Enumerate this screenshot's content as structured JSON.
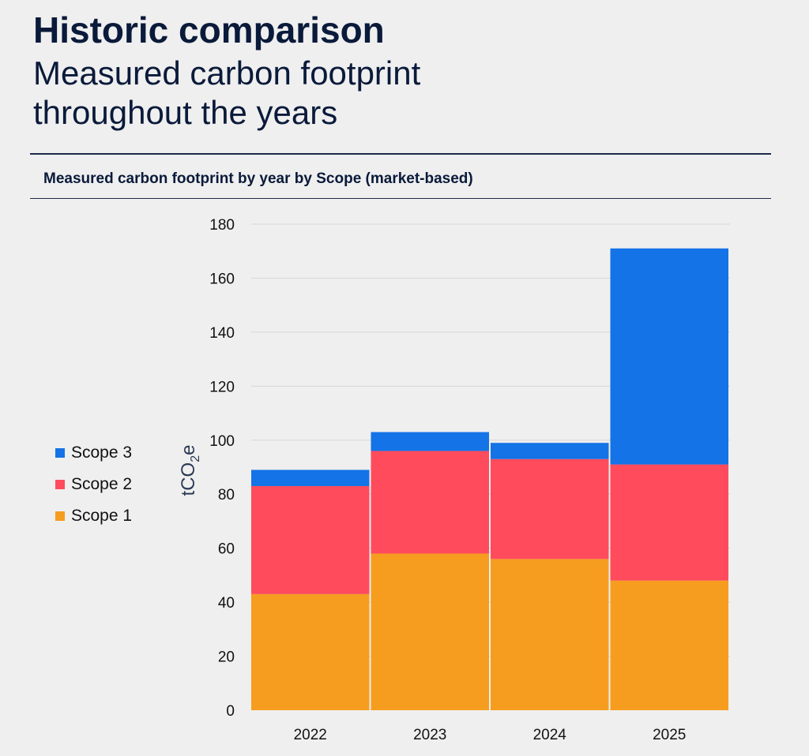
{
  "header": {
    "title": "Historic comparison",
    "subtitle": "Measured carbon footprint throughout the years"
  },
  "chart_heading": "Measured carbon footprint by year by Scope (market-based)",
  "chart_data": {
    "type": "bar",
    "stacked": true,
    "categories": [
      "2022",
      "2023",
      "2024",
      "2025"
    ],
    "series": [
      {
        "name": "Scope 1",
        "color": "#f69d1f",
        "values": [
          43,
          58,
          56,
          48
        ]
      },
      {
        "name": "Scope 2",
        "color": "#ff4b5c",
        "values": [
          40,
          38,
          37,
          43
        ]
      },
      {
        "name": "Scope 3",
        "color": "#1473e6",
        "values": [
          6,
          7,
          6,
          80
        ]
      }
    ],
    "ylabel": "tCO₂e",
    "ylabel_main": "tCO",
    "ylabel_sub": "2",
    "ylabel_end": "e",
    "ylim": [
      0,
      180
    ],
    "yticks": [
      "0",
      "20",
      "40",
      "60",
      "80",
      "100",
      "120",
      "140",
      "160",
      "180"
    ],
    "grid": true,
    "legend_position": "left",
    "gridline_color": "#d6d6d6"
  }
}
